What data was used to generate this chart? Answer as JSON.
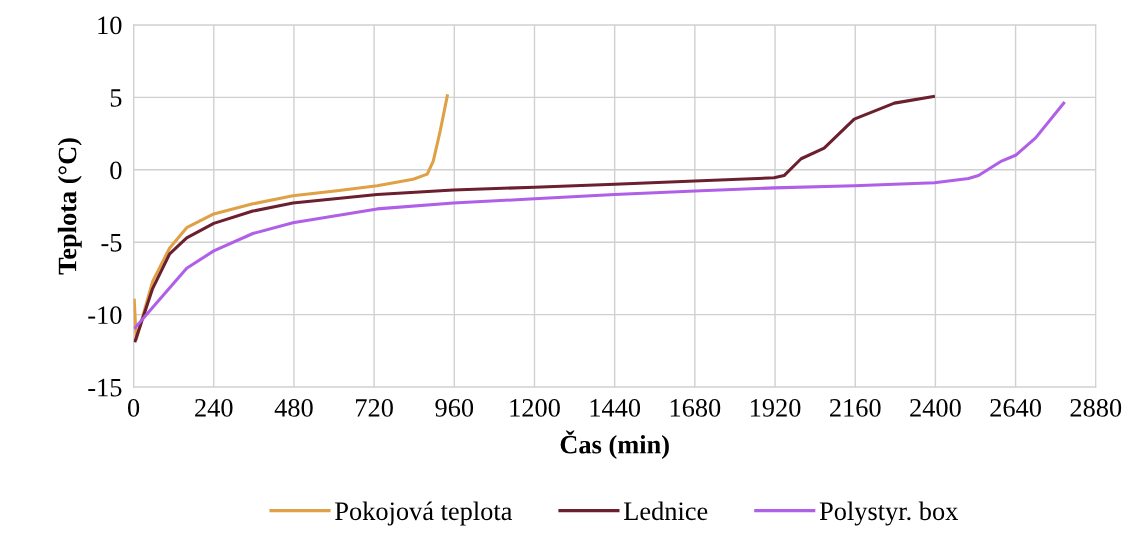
{
  "chart_data": {
    "type": "line",
    "xlabel": "Čas (min)",
    "ylabel": "Teplota (°C)",
    "xlim": [
      0,
      2880
    ],
    "xticks": [
      0,
      240,
      480,
      720,
      960,
      1200,
      1440,
      1680,
      1920,
      2160,
      2400,
      2640,
      2880
    ],
    "ylim": [
      -15,
      10
    ],
    "yticks": [
      -15,
      -10,
      -5,
      0,
      5,
      10
    ],
    "grid": true,
    "legend": "bottom",
    "marker": "none",
    "line_style": "solid",
    "series": [
      {
        "name": "Pokojová teplota",
        "color": "#e0a045",
        "x": [
          2,
          8,
          57,
          108,
          159,
          240,
          357,
          477,
          609,
          729,
          837,
          879,
          897,
          918,
          939
        ],
        "values": [
          -9.0,
          -11.7,
          -7.7,
          -5.4,
          -4.0,
          -3.05,
          -2.35,
          -1.8,
          -1.45,
          -1.1,
          -0.65,
          -0.3,
          0.6,
          2.7,
          5.1
        ]
      },
      {
        "name": "Lednice",
        "color": "#6b2030",
        "x": [
          5,
          57,
          108,
          159,
          240,
          357,
          477,
          729,
          957,
          1200,
          1440,
          1698,
          1917,
          1947,
          1998,
          2067,
          2157,
          2277,
          2394
        ],
        "values": [
          -11.8,
          -8.2,
          -5.8,
          -4.7,
          -3.7,
          -2.85,
          -2.3,
          -1.7,
          -1.4,
          -1.2,
          -1.0,
          -0.76,
          -0.55,
          -0.4,
          0.76,
          1.5,
          3.5,
          4.6,
          5.05
        ]
      },
      {
        "name": "Polystyr. box",
        "color": "#b060e8",
        "x": [
          5,
          57,
          159,
          240,
          357,
          477,
          729,
          957,
          1200,
          1440,
          1698,
          1917,
          2157,
          2397,
          2499,
          2529,
          2598,
          2640,
          2700,
          2784
        ],
        "values": [
          -10.9,
          -9.5,
          -6.8,
          -5.6,
          -4.4,
          -3.65,
          -2.7,
          -2.3,
          -2.0,
          -1.7,
          -1.45,
          -1.25,
          -1.1,
          -0.9,
          -0.6,
          -0.4,
          0.6,
          1.0,
          2.2,
          4.6
        ]
      }
    ]
  }
}
